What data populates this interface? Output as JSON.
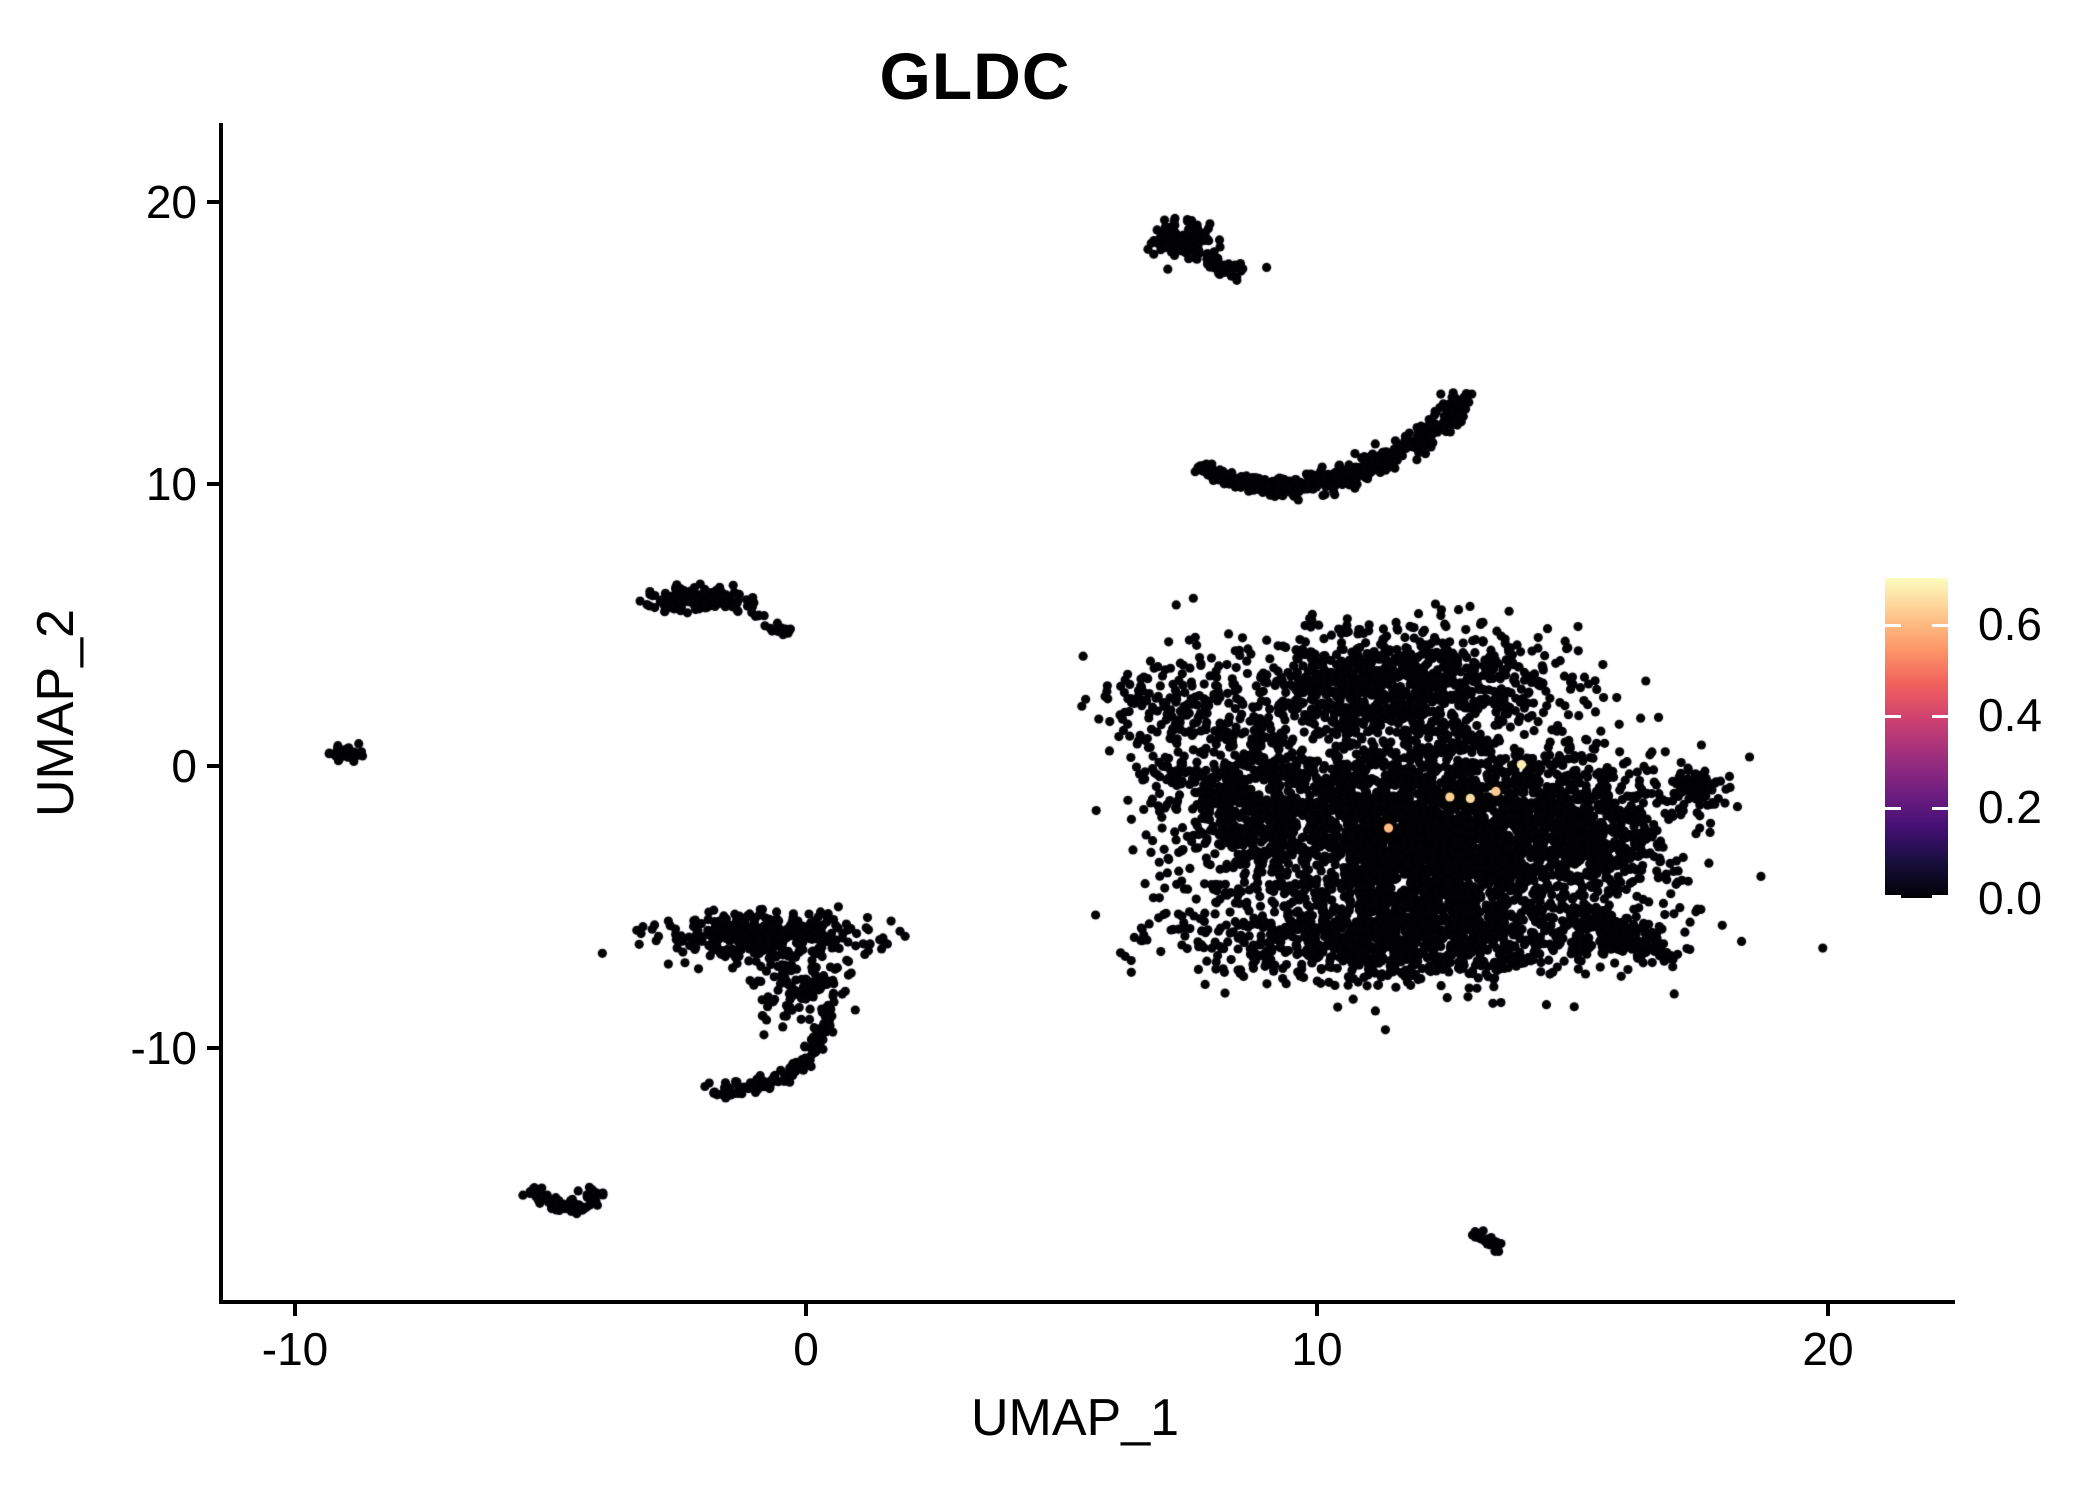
{
  "title": "GLDC",
  "axes": {
    "x_label": "UMAP_1",
    "y_label": "UMAP_2",
    "x_ticks": [
      {
        "label": "-10",
        "value": -10
      },
      {
        "label": "0",
        "value": 0
      },
      {
        "label": "10",
        "value": 10
      },
      {
        "label": "20",
        "value": 20
      }
    ],
    "y_ticks": [
      {
        "label": "20",
        "value": 20
      },
      {
        "label": "10",
        "value": 10
      },
      {
        "label": "0",
        "value": 0
      },
      {
        "label": "-10",
        "value": -10
      }
    ]
  },
  "legend": {
    "ticks": [
      {
        "label": "0.6",
        "value": 0.6
      },
      {
        "label": "0.4",
        "value": 0.4
      },
      {
        "label": "0.2",
        "value": 0.2
      },
      {
        "label": "0.0",
        "value": 0.0
      }
    ],
    "scale_max": 0.7,
    "colormap": "magma",
    "colors": [
      "#000004",
      "#180f3d",
      "#440f76",
      "#721f81",
      "#9e2f7f",
      "#cd4071",
      "#f1605d",
      "#fd9668",
      "#feca8d",
      "#fcfdbf"
    ]
  },
  "chart_data": {
    "type": "scatter",
    "title": "GLDC",
    "xlabel": "UMAP_1",
    "ylabel": "UMAP_2",
    "xlim": [
      -11.4,
      22.5
    ],
    "ylim": [
      -19.0,
      22.7
    ],
    "grid": false,
    "point_color": "#020204",
    "point_radius_px": 4.6,
    "clusters": [
      {
        "id": "top-island-blob",
        "type": "gauss",
        "cx": 7.3,
        "cy": 18.7,
        "sx": 0.33,
        "sy": 0.33,
        "n": 95
      },
      {
        "id": "top-island-tail",
        "type": "line",
        "x1": 7.55,
        "y1": 18.35,
        "x2": 8.5,
        "y2": 17.45,
        "jitter": 0.14,
        "n": 48
      },
      {
        "id": "crescent",
        "type": "curve",
        "pts": [
          [
            7.7,
            10.55
          ],
          [
            10.2,
            10.1
          ],
          [
            12.85,
            12.8
          ]
        ],
        "jitter": 0.3,
        "taper": true,
        "n": 540
      },
      {
        "id": "left-pair-main-blob",
        "type": "gauss",
        "cx": -2.05,
        "cy": 5.9,
        "sx": 0.5,
        "sy": 0.24,
        "n": 125
      },
      {
        "id": "left-pair-dot",
        "type": "gauss",
        "cx": -0.85,
        "cy": 5.35,
        "sx": 0.06,
        "sy": 0.05,
        "n": 4
      },
      {
        "id": "left-pair-dash",
        "type": "line",
        "x1": -0.75,
        "y1": 4.95,
        "x2": -0.3,
        "y2": 4.72,
        "jitter": 0.07,
        "n": 13
      },
      {
        "id": "far-left-island",
        "type": "gauss",
        "cx": -9.05,
        "cy": 0.45,
        "sx": 0.2,
        "sy": 0.14,
        "n": 35
      },
      {
        "id": "main-top-lobe",
        "type": "gauss",
        "cx": 11.6,
        "cy": 2.9,
        "sx": 1.5,
        "sy": 1.0,
        "n": 950
      },
      {
        "id": "main-nw-arm",
        "type": "gauss",
        "cx": 7.0,
        "cy": 2.3,
        "sx": 0.75,
        "sy": 0.95,
        "n": 130
      },
      {
        "id": "main-left-lobe",
        "type": "gauss",
        "cx": 8.7,
        "cy": -1.2,
        "sx": 1.0,
        "sy": 1.7,
        "n": 780
      },
      {
        "id": "main-core",
        "type": "gauss",
        "cx": 12.3,
        "cy": -2.4,
        "sx": 1.6,
        "sy": 1.9,
        "n": 2450
      },
      {
        "id": "main-east-bulge",
        "type": "gauss",
        "cx": 15.0,
        "cy": -2.3,
        "sx": 1.1,
        "sy": 1.4,
        "n": 760
      },
      {
        "id": "main-south-band",
        "type": "gauss",
        "cx": 11.6,
        "cy": -6.1,
        "sx": 2.1,
        "sy": 0.8,
        "n": 980
      },
      {
        "id": "main-se-beak",
        "type": "line",
        "x1": 15.4,
        "y1": -5.4,
        "x2": 16.7,
        "y2": -6.7,
        "jitter": 0.3,
        "n": 175
      },
      {
        "id": "right-island",
        "type": "gauss",
        "cx": 17.55,
        "cy": -0.8,
        "sx": 0.28,
        "sy": 0.33,
        "n": 60
      },
      {
        "id": "leftmid-band",
        "type": "gauss",
        "cx": -0.9,
        "cy": -6.05,
        "sx": 0.95,
        "sy": 0.42,
        "n": 350
      },
      {
        "id": "leftmid-body",
        "type": "gauss",
        "cx": -0.15,
        "cy": -7.9,
        "sx": 0.45,
        "sy": 0.75,
        "n": 120
      },
      {
        "id": "leftmid-hook",
        "type": "curve",
        "pts": [
          [
            0.45,
            -8.8
          ],
          [
            -0.4,
            -10.9
          ],
          [
            -2.0,
            -11.5
          ]
        ],
        "jitter": 0.14,
        "taper": false,
        "n": 115
      },
      {
        "id": "bottomleft-v-left",
        "type": "line",
        "x1": -5.35,
        "y1": -15.0,
        "x2": -4.72,
        "y2": -15.8,
        "jitter": 0.12,
        "n": 36
      },
      {
        "id": "bottomleft-v-right",
        "type": "line",
        "x1": -4.72,
        "y1": -15.8,
        "x2": -4.02,
        "y2": -15.1,
        "jitter": 0.12,
        "n": 36
      },
      {
        "id": "bottomright-dash",
        "type": "line",
        "x1": 13.1,
        "y1": -16.55,
        "x2": 13.66,
        "y2": -17.2,
        "jitter": 0.09,
        "n": 24
      }
    ],
    "high_expression_points": [
      {
        "x": 14.0,
        "y": 0.05,
        "value": 0.68
      },
      {
        "x": 13.5,
        "y": -0.9,
        "value": 0.62
      },
      {
        "x": 13.0,
        "y": -1.15,
        "value": 0.65
      },
      {
        "x": 12.6,
        "y": -1.1,
        "value": 0.63
      },
      {
        "x": 11.4,
        "y": -2.2,
        "value": 0.6
      }
    ]
  }
}
